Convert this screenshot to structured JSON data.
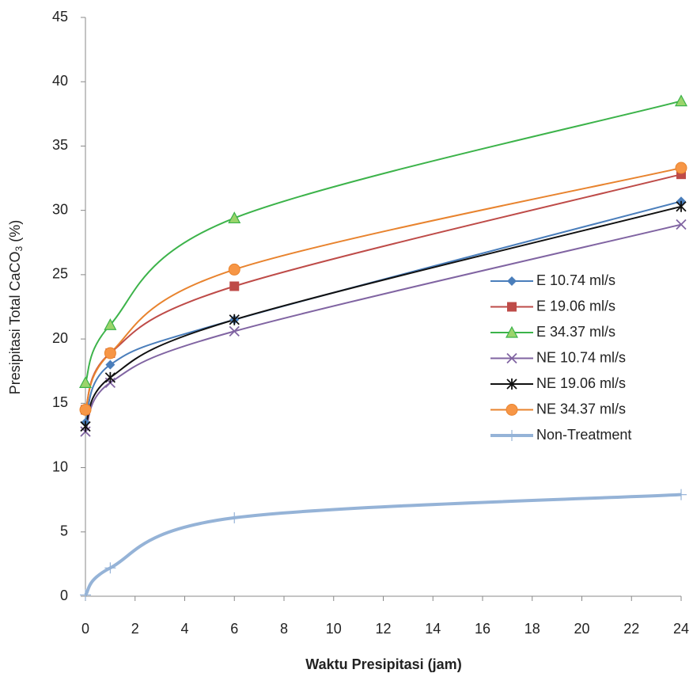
{
  "chart_data": {
    "type": "line",
    "xlabel": "Waktu Presipitasi (jam)",
    "ylabel": {
      "text": "Presipitasi Total CaCO",
      "sub": "3",
      "suffix": " (%)"
    },
    "x": [
      0,
      1,
      6,
      24
    ],
    "xlim": [
      0,
      24
    ],
    "xticks": [
      0,
      2,
      4,
      6,
      8,
      10,
      12,
      14,
      16,
      18,
      20,
      22,
      24
    ],
    "ylim": [
      0,
      45
    ],
    "yticks": [
      0,
      5,
      10,
      15,
      20,
      25,
      30,
      35,
      40,
      45
    ],
    "smooth": true,
    "grid": false,
    "legend": "right",
    "series": [
      {
        "name": "E 10.74 ml/s",
        "color": "#4a7ebb",
        "marker": "diamond",
        "values": [
          13.5,
          18.0,
          21.5,
          30.7
        ]
      },
      {
        "name": "E 19.06  ml/s",
        "color": "#be4b48",
        "marker": "square",
        "values": [
          14.5,
          18.9,
          24.1,
          32.8
        ]
      },
      {
        "name": "E 34.37 ml/s",
        "color": "#3cb34a",
        "fill": "#9bd46b",
        "marker": "triangle",
        "values": [
          16.6,
          21.1,
          29.4,
          38.5
        ]
      },
      {
        "name": "NE 10.74 ml/s",
        "color": "#8064a2",
        "marker": "x",
        "values": [
          12.8,
          16.6,
          20.6,
          28.9
        ]
      },
      {
        "name": "NE 19.06 ml/s",
        "color": "#111111",
        "marker": "star",
        "values": [
          13.2,
          17.0,
          21.5,
          30.3
        ]
      },
      {
        "name": "NE 34.37 ml/s",
        "color": "#e8832e",
        "fill": "#f79646",
        "marker": "circle",
        "values": [
          14.5,
          18.9,
          25.4,
          33.3
        ]
      },
      {
        "name": "Non-Treatment",
        "color": "#95b3d7",
        "marker": "plus",
        "width": 4,
        "values": [
          0.1,
          2.2,
          6.1,
          7.9
        ]
      }
    ]
  }
}
